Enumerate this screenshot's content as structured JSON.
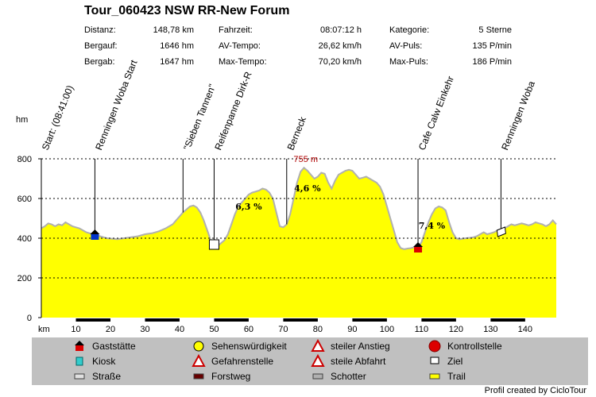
{
  "title": "Tour_060423 NSW RR-New Forum",
  "stats": [
    {
      "label": "Distanz:",
      "value": "148,78 km"
    },
    {
      "label": "Bergauf:",
      "value": "1646 hm"
    },
    {
      "label": "Bergab:",
      "value": "1647 hm"
    },
    {
      "label": "Fahrzeit:",
      "value": "08:07:12 h"
    },
    {
      "label": "AV-Tempo:",
      "value": "26,62 km/h"
    },
    {
      "label": "Max-Tempo:",
      "value": "70,20 km/h"
    },
    {
      "label": "Kategorie:",
      "value": "5 Sterne"
    },
    {
      "label": "AV-Puls:",
      "value": "135 P/min"
    },
    {
      "label": "Max-Puls:",
      "value": "186 P/min"
    }
  ],
  "chart_data": {
    "type": "area",
    "ylabel": "hm",
    "xlabel": "km",
    "ylim": [
      0,
      800
    ],
    "xlim": [
      0,
      149
    ],
    "yticks": [
      0,
      200,
      400,
      600,
      800
    ],
    "xticks": [
      10,
      20,
      30,
      40,
      50,
      60,
      70,
      80,
      90,
      100,
      110,
      120,
      130,
      140
    ],
    "grid": "horizontal dashed",
    "fill_color": "#ffff00",
    "line_color": "#b0b0b0",
    "series": [
      {
        "x": [
          0,
          1,
          2,
          3,
          4,
          5,
          6,
          7,
          8,
          9,
          10,
          11,
          12,
          13,
          14,
          15,
          16,
          17,
          18,
          19,
          20,
          22,
          24,
          26,
          28,
          30,
          32,
          34,
          36,
          38,
          39,
          40,
          41,
          42,
          43,
          44,
          45,
          46,
          47,
          48,
          49,
          50,
          51,
          52,
          53,
          54,
          55,
          56,
          57,
          58,
          59,
          60,
          61,
          62,
          63,
          64,
          65,
          66,
          67,
          68,
          69,
          70,
          71,
          72,
          73,
          74,
          75,
          76,
          77,
          78,
          79,
          80,
          81,
          82,
          83,
          84,
          85,
          86,
          87,
          88,
          89,
          90,
          91,
          92,
          93,
          94,
          95,
          96,
          97,
          98,
          99,
          100,
          101,
          102,
          103,
          104,
          105,
          106,
          107,
          108,
          109,
          110,
          111,
          112,
          113,
          114,
          115,
          116,
          117,
          118,
          119,
          120,
          121,
          122,
          123,
          124,
          125,
          126,
          127,
          128,
          129,
          130,
          131,
          132,
          133,
          134,
          135,
          136,
          137,
          138,
          139,
          140,
          141,
          142,
          143,
          144,
          145,
          146,
          147,
          148,
          149
        ],
        "y": [
          450,
          460,
          475,
          470,
          460,
          470,
          465,
          480,
          470,
          460,
          455,
          450,
          440,
          430,
          425,
          420,
          415,
          410,
          405,
          400,
          398,
          395,
          400,
          405,
          410,
          420,
          425,
          435,
          450,
          470,
          490,
          510,
          530,
          545,
          560,
          565,
          555,
          530,
          490,
          440,
          390,
          370,
          360,
          375,
          390,
          420,
          470,
          520,
          560,
          580,
          600,
          620,
          630,
          635,
          640,
          650,
          645,
          630,
          600,
          530,
          460,
          455,
          470,
          520,
          600,
          680,
          735,
          755,
          740,
          720,
          700,
          710,
          730,
          725,
          680,
          650,
          690,
          720,
          730,
          740,
          745,
          740,
          720,
          700,
          705,
          710,
          700,
          690,
          680,
          660,
          620,
          560,
          500,
          440,
          380,
          350,
          345,
          348,
          350,
          355,
          350,
          380,
          430,
          480,
          520,
          550,
          560,
          555,
          540,
          480,
          430,
          400,
          395,
          398,
          400,
          402,
          405,
          410,
          420,
          430,
          420,
          425,
          430,
          440,
          445,
          450,
          460,
          470,
          465,
          470,
          475,
          470,
          465,
          470,
          480,
          475,
          470,
          460,
          470,
          490,
          470
        ]
      }
    ],
    "peak_label": "755 m",
    "gradient_labels": [
      "6,3 %",
      "4,6 %",
      "7,4 %"
    ],
    "waypoints": [
      {
        "km": 0,
        "label": "Start: (08:41:00)"
      },
      {
        "km": 15.5,
        "label": "Renningen Woba Start"
      },
      {
        "km": 41,
        "label": "\"Sieben Tannen\""
      },
      {
        "km": 50,
        "label": "Reifenpanne Dirk-R"
      },
      {
        "km": 71,
        "label": "Berneck"
      },
      {
        "km": 109,
        "label": "Cafe Calw Einkehr"
      },
      {
        "km": 133,
        "label": "Renningen Woba"
      }
    ],
    "legend": [
      {
        "label": "Gaststätte",
        "icon": "house-icon"
      },
      {
        "label": "Sehenswürdigkeit",
        "icon": "smiley-icon"
      },
      {
        "label": "steiler Anstieg",
        "icon": "warning-up-icon"
      },
      {
        "label": "Kontrollstelle",
        "icon": "stop-sign-icon"
      },
      {
        "label": "Kiosk",
        "icon": "cup-icon"
      },
      {
        "label": "Gefahrenstelle",
        "icon": "warning-icon"
      },
      {
        "label": "steile Abfahrt",
        "icon": "warning-down-icon"
      },
      {
        "label": "Ziel",
        "icon": "finish-flag-icon"
      },
      {
        "label": "Straße",
        "icon": "road-swatch"
      },
      {
        "label": "Forstweg",
        "icon": "forest-swatch"
      },
      {
        "label": "Schotter",
        "icon": "gravel-swatch"
      },
      {
        "label": "Trail",
        "icon": "trail-swatch"
      }
    ]
  },
  "credit": "Profil created by CicloTour"
}
